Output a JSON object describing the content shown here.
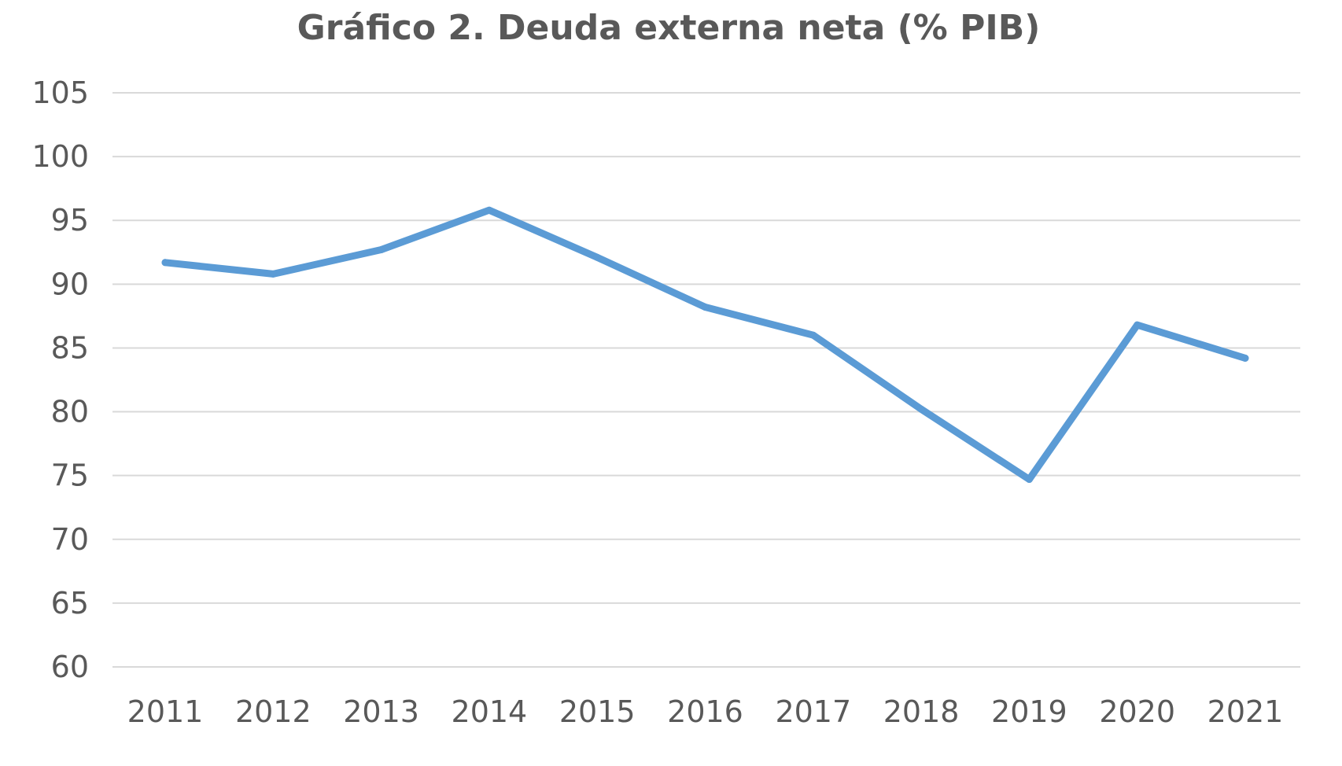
{
  "chart_data": {
    "type": "line",
    "title": "Gráfico 2. Deuda externa neta (% PIB)",
    "xlabel": "",
    "ylabel": "",
    "categories": [
      "2011",
      "2012",
      "2013",
      "2014",
      "2015",
      "2016",
      "2017",
      "2018",
      "2019",
      "2020",
      "2021"
    ],
    "series": [
      {
        "values": [
          91.7,
          90.8,
          92.7,
          95.8,
          92.1,
          88.2,
          86.0,
          80.2,
          74.7,
          86.8,
          84.2
        ]
      }
    ],
    "ylim": [
      60,
      105
    ],
    "yticks": [
      "105",
      "100",
      "95",
      "90",
      "85",
      "80",
      "75",
      "70",
      "65",
      "60"
    ],
    "grid": true,
    "legend": "none",
    "colors": {
      "series": "#5b9bd5",
      "grid": "#d9d9d9",
      "text": "#595959"
    }
  }
}
